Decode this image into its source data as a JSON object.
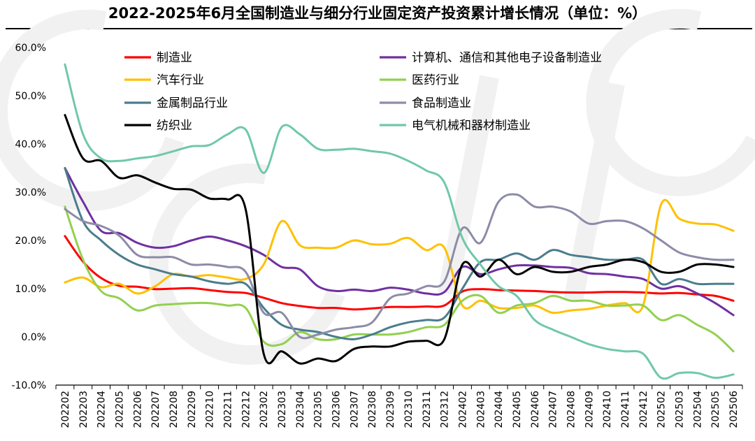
{
  "chart_data": {
    "type": "line",
    "title": "2022-2025年6月全国制造业与细分行业固定资产投资累计增长情况（单位：%）",
    "xlabel": "",
    "ylabel": "",
    "ylim": [
      -10,
      60
    ],
    "y_ticks": [
      "60.0%",
      "50.0%",
      "40.0%",
      "30.0%",
      "20.0%",
      "10.0%",
      "0.0%",
      "-10.0%"
    ],
    "y_tick_values": [
      60,
      50,
      40,
      30,
      20,
      10,
      0,
      -10
    ],
    "grid": false,
    "legend_position": "top",
    "categories": [
      "202202",
      "202203",
      "202204",
      "202205",
      "202206",
      "202207",
      "202208",
      "202209",
      "202210",
      "202211",
      "202212",
      "202302",
      "202303",
      "202304",
      "202305",
      "202306",
      "202307",
      "202308",
      "202309",
      "202310",
      "202311",
      "202312",
      "202402",
      "202403",
      "202404",
      "202405",
      "202406",
      "202407",
      "202408",
      "202409",
      "202410",
      "202411",
      "202412",
      "202502",
      "202503",
      "202504",
      "202505",
      "202506"
    ],
    "series": [
      {
        "name": "制造业",
        "color": "#ff0000",
        "values": [
          20.9,
          15.6,
          12.2,
          10.6,
          10.4,
          9.9,
          10.0,
          10.1,
          9.7,
          9.3,
          9.1,
          8.1,
          7.0,
          6.4,
          6.0,
          6.0,
          5.7,
          5.9,
          6.2,
          6.2,
          6.3,
          6.5,
          9.4,
          9.9,
          9.7,
          9.6,
          9.5,
          9.3,
          9.2,
          9.2,
          9.3,
          9.3,
          9.2,
          9.0,
          9.1,
          8.8,
          8.5,
          7.5
        ]
      },
      {
        "name": "计算机、通信和其他电子设备制造业",
        "color": "#7030a0",
        "values": [
          35.0,
          28.0,
          22.0,
          21.5,
          19.5,
          18.5,
          18.8,
          20.0,
          20.8,
          20.0,
          18.8,
          17.0,
          14.5,
          14.0,
          10.5,
          9.5,
          9.8,
          9.5,
          10.2,
          9.8,
          9.0,
          9.3,
          14.5,
          13.0,
          14.0,
          14.8,
          14.8,
          14.5,
          14.3,
          13.2,
          13.0,
          12.5,
          12.0,
          10.0,
          10.5,
          9.0,
          7.0,
          4.5
        ]
      },
      {
        "name": "汽车行业",
        "color": "#ffc000",
        "values": [
          11.3,
          12.3,
          10.3,
          11.0,
          9.0,
          10.5,
          13.0,
          12.5,
          12.8,
          12.3,
          12.0,
          15.0,
          24.0,
          19.0,
          18.5,
          18.5,
          20.0,
          19.2,
          19.3,
          20.5,
          18.0,
          18.5,
          6.5,
          7.5,
          6.0,
          6.0,
          6.5,
          5.0,
          5.5,
          5.8,
          6.5,
          7.0,
          6.5,
          27.5,
          24.5,
          23.5,
          23.3,
          22.0
        ]
      },
      {
        "name": "医药行业",
        "color": "#92d050",
        "values": [
          27.0,
          16.0,
          9.5,
          8.0,
          5.5,
          6.5,
          6.8,
          7.0,
          7.0,
          6.5,
          6.0,
          -1.0,
          -1.5,
          1.0,
          -0.5,
          -0.5,
          0.5,
          0.5,
          0.5,
          1.0,
          2.0,
          2.5,
          7.5,
          8.5,
          5.0,
          6.5,
          7.0,
          8.5,
          7.5,
          7.5,
          6.5,
          6.5,
          6.5,
          3.5,
          4.5,
          2.5,
          0.5,
          -3.0
        ]
      },
      {
        "name": "金属制品行业",
        "color": "#4a7d8c",
        "values": [
          35.0,
          24.0,
          20.0,
          17.0,
          15.0,
          14.0,
          13.0,
          12.5,
          11.5,
          11.0,
          11.0,
          6.0,
          2.5,
          1.5,
          1.0,
          0.0,
          -0.5,
          0.5,
          2.0,
          3.0,
          3.5,
          4.0,
          10.0,
          15.5,
          16.0,
          17.3,
          16.0,
          18.0,
          17.0,
          16.5,
          16.0,
          16.0,
          16.0,
          11.0,
          12.0,
          11.0,
          11.0,
          11.0
        ]
      },
      {
        "name": "食品制造业",
        "color": "#8c8ca8",
        "values": [
          26.5,
          24.0,
          23.0,
          21.0,
          17.0,
          16.5,
          16.5,
          15.0,
          15.0,
          14.5,
          13.5,
          5.0,
          5.0,
          0.0,
          0.5,
          1.5,
          2.0,
          3.0,
          8.0,
          9.0,
          10.5,
          11.5,
          22.5,
          19.5,
          28.0,
          29.5,
          27.0,
          27.0,
          26.0,
          23.5,
          24.0,
          24.0,
          22.5,
          20.0,
          17.5,
          16.5,
          16.0,
          16.0
        ]
      },
      {
        "name": "纺织业",
        "color": "#000000",
        "values": [
          46.0,
          37.0,
          36.5,
          33.0,
          33.5,
          32.0,
          30.7,
          30.5,
          28.7,
          28.5,
          26.5,
          -3.5,
          -3.0,
          -5.5,
          -4.5,
          -5.0,
          -2.5,
          -2.0,
          -2.0,
          -1.0,
          -0.8,
          -0.5,
          15.0,
          12.5,
          16.0,
          13.0,
          14.5,
          13.5,
          13.5,
          14.5,
          15.0,
          16.0,
          15.5,
          13.5,
          13.5,
          15.0,
          15.0,
          14.5
        ]
      },
      {
        "name": "电气机械和器材制造业",
        "color": "#70c8a8",
        "values": [
          56.5,
          42.0,
          37.0,
          36.5,
          37.0,
          37.5,
          38.5,
          39.5,
          39.8,
          42.0,
          43.0,
          34.0,
          43.5,
          42.0,
          39.0,
          38.8,
          39.0,
          38.5,
          38.0,
          36.5,
          34.5,
          32.0,
          20.5,
          15.0,
          10.5,
          8.5,
          3.5,
          1.5,
          0.0,
          -1.5,
          -2.5,
          -3.0,
          -3.5,
          -8.5,
          -7.5,
          -7.5,
          -8.5,
          -7.8
        ]
      }
    ]
  },
  "watermark": {
    "text": "GGII",
    "color": "#eeeeee"
  }
}
